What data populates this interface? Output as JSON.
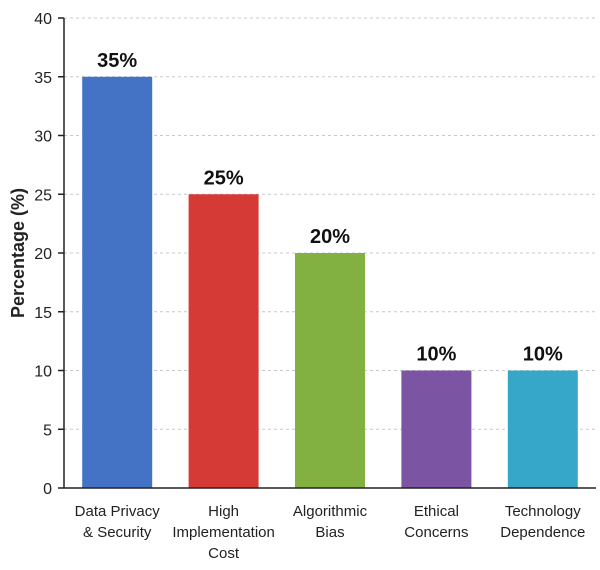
{
  "chart_data": {
    "type": "bar",
    "title": "",
    "xlabel": "",
    "ylabel": "Percentage (%)",
    "ylim": [
      0,
      40
    ],
    "yticks": [
      0,
      5,
      10,
      15,
      20,
      25,
      30,
      35,
      40
    ],
    "grid": "horizontal dashed",
    "categories": [
      [
        "Data Privacy",
        "& Security"
      ],
      [
        "High",
        "Implementation",
        "Cost"
      ],
      [
        "Algorithmic",
        "Bias"
      ],
      [
        "Ethical",
        "Concerns"
      ],
      [
        "Technology",
        "Dependence"
      ]
    ],
    "values": [
      35,
      25,
      20,
      10,
      10
    ],
    "data_labels": [
      "35%",
      "25%",
      "20%",
      "10%",
      "10%"
    ],
    "colors": [
      "#4472c4",
      "#d63a36",
      "#82b041",
      "#7b55a3",
      "#36a7c8"
    ]
  }
}
